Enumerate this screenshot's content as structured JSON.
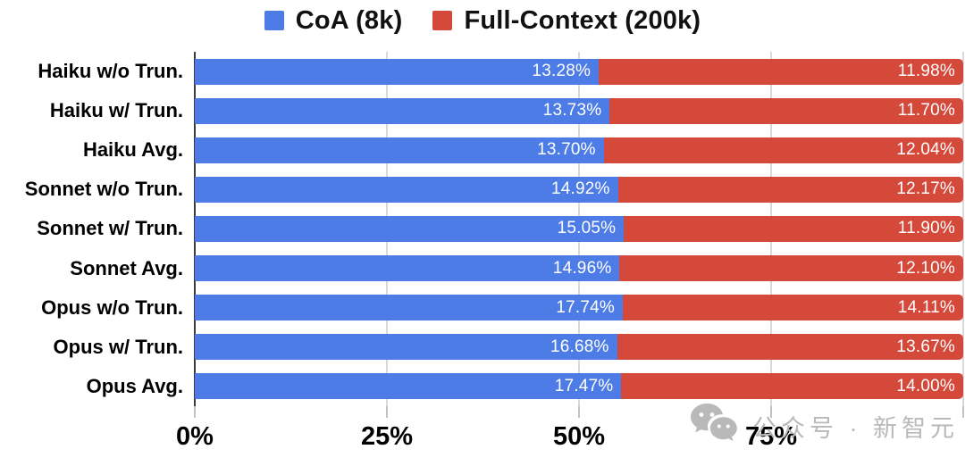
{
  "legend": {
    "items": [
      {
        "label": "CoA (8k)",
        "color": "#4d7ce6"
      },
      {
        "label": "Full-Context (200k)",
        "color": "#d5493b"
      }
    ]
  },
  "chart_data": {
    "type": "bar",
    "orientation": "horizontal",
    "stacking": "percent",
    "title": "",
    "xlabel": "",
    "ylabel": "",
    "xlim": [
      0,
      100
    ],
    "grid": true,
    "legend_position": "top-center",
    "categories": [
      "Haiku w/o Trun.",
      "Haiku w/ Trun.",
      "Haiku Avg.",
      "Sonnet w/o Trun.",
      "Sonnet w/ Trun.",
      "Sonnet Avg.",
      "Opus w/o Trun.",
      "Opus w/ Trun.",
      "Opus Avg."
    ],
    "series": [
      {
        "name": "CoA (8k)",
        "color": "#4d7ce6",
        "values": [
          13.28,
          13.73,
          13.7,
          14.92,
          15.05,
          14.96,
          17.74,
          16.68,
          17.47
        ],
        "labels": [
          "13.28%",
          "13.73%",
          "13.70%",
          "14.92%",
          "15.05%",
          "14.96%",
          "17.74%",
          "16.68%",
          "17.47%"
        ]
      },
      {
        "name": "Full-Context (200k)",
        "color": "#d5493b",
        "values": [
          11.98,
          11.7,
          12.04,
          12.17,
          11.9,
          12.1,
          14.11,
          13.67,
          14.0
        ],
        "labels": [
          "11.98%",
          "11.70%",
          "12.04%",
          "12.17%",
          "11.90%",
          "12.10%",
          "14.11%",
          "13.67%",
          "14.00%"
        ]
      }
    ],
    "x_ticks": [
      {
        "value": 0,
        "label": "0%"
      },
      {
        "value": 25,
        "label": "25%"
      },
      {
        "value": 50,
        "label": "50%"
      },
      {
        "value": 75,
        "label": "75%"
      },
      {
        "value": 100,
        "label": ""
      }
    ]
  },
  "style": {
    "gridline_color": "#d9d9d9",
    "axis_line_color": "#3c3c3c",
    "tick_color": "#c2c2c2",
    "value_label_color": "#ffffff",
    "watermark_color": "#b9b9b9"
  },
  "watermark": {
    "text": "公众号 · 新智元",
    "icon": "wechat-icon"
  }
}
